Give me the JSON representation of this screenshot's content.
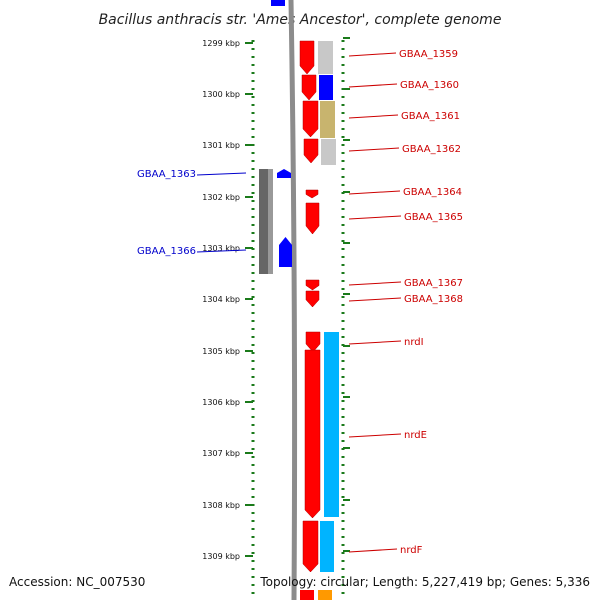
{
  "title": "Bacillus anthracis str. 'Ames Ancestor', complete genome",
  "footer": {
    "accession": "Accession: NC_007530",
    "topology": "Topology: circular; Length: 5,227,419 bp; Genes: 5,336"
  },
  "scale": {
    "unit": "kbp",
    "ticks": [
      "1299 kbp",
      "1300 kbp",
      "1301 kbp",
      "1302 kbp",
      "1303 kbp",
      "1304 kbp",
      "1305 kbp",
      "1306 kbp",
      "1307 kbp",
      "1308 kbp",
      "1309 kbp"
    ]
  },
  "colors": {
    "cds_forward": "#ff0000",
    "gene_blue": "#0000ff",
    "gene_label_right": "#cc0000",
    "gene_label_left": "#0000cc",
    "ruler_green": "#1a7a1a",
    "cog_gray": "#c8c8c8",
    "cog_olive": "#c8b46e",
    "cog_cyan": "#00b4ff",
    "cog_orange": "#ff9900"
  },
  "genes_right": [
    {
      "label": "GBAA_1359"
    },
    {
      "label": "GBAA_1360"
    },
    {
      "label": "GBAA_1361"
    },
    {
      "label": "GBAA_1362"
    },
    {
      "label": "GBAA_1364"
    },
    {
      "label": "GBAA_1365"
    },
    {
      "label": "GBAA_1367"
    },
    {
      "label": "GBAA_1368"
    },
    {
      "label": "nrdI"
    },
    {
      "label": "nrdE"
    },
    {
      "label": "nrdF"
    }
  ],
  "genes_left": [
    {
      "label": "GBAA_1363"
    },
    {
      "label": "GBAA_1366"
    }
  ]
}
